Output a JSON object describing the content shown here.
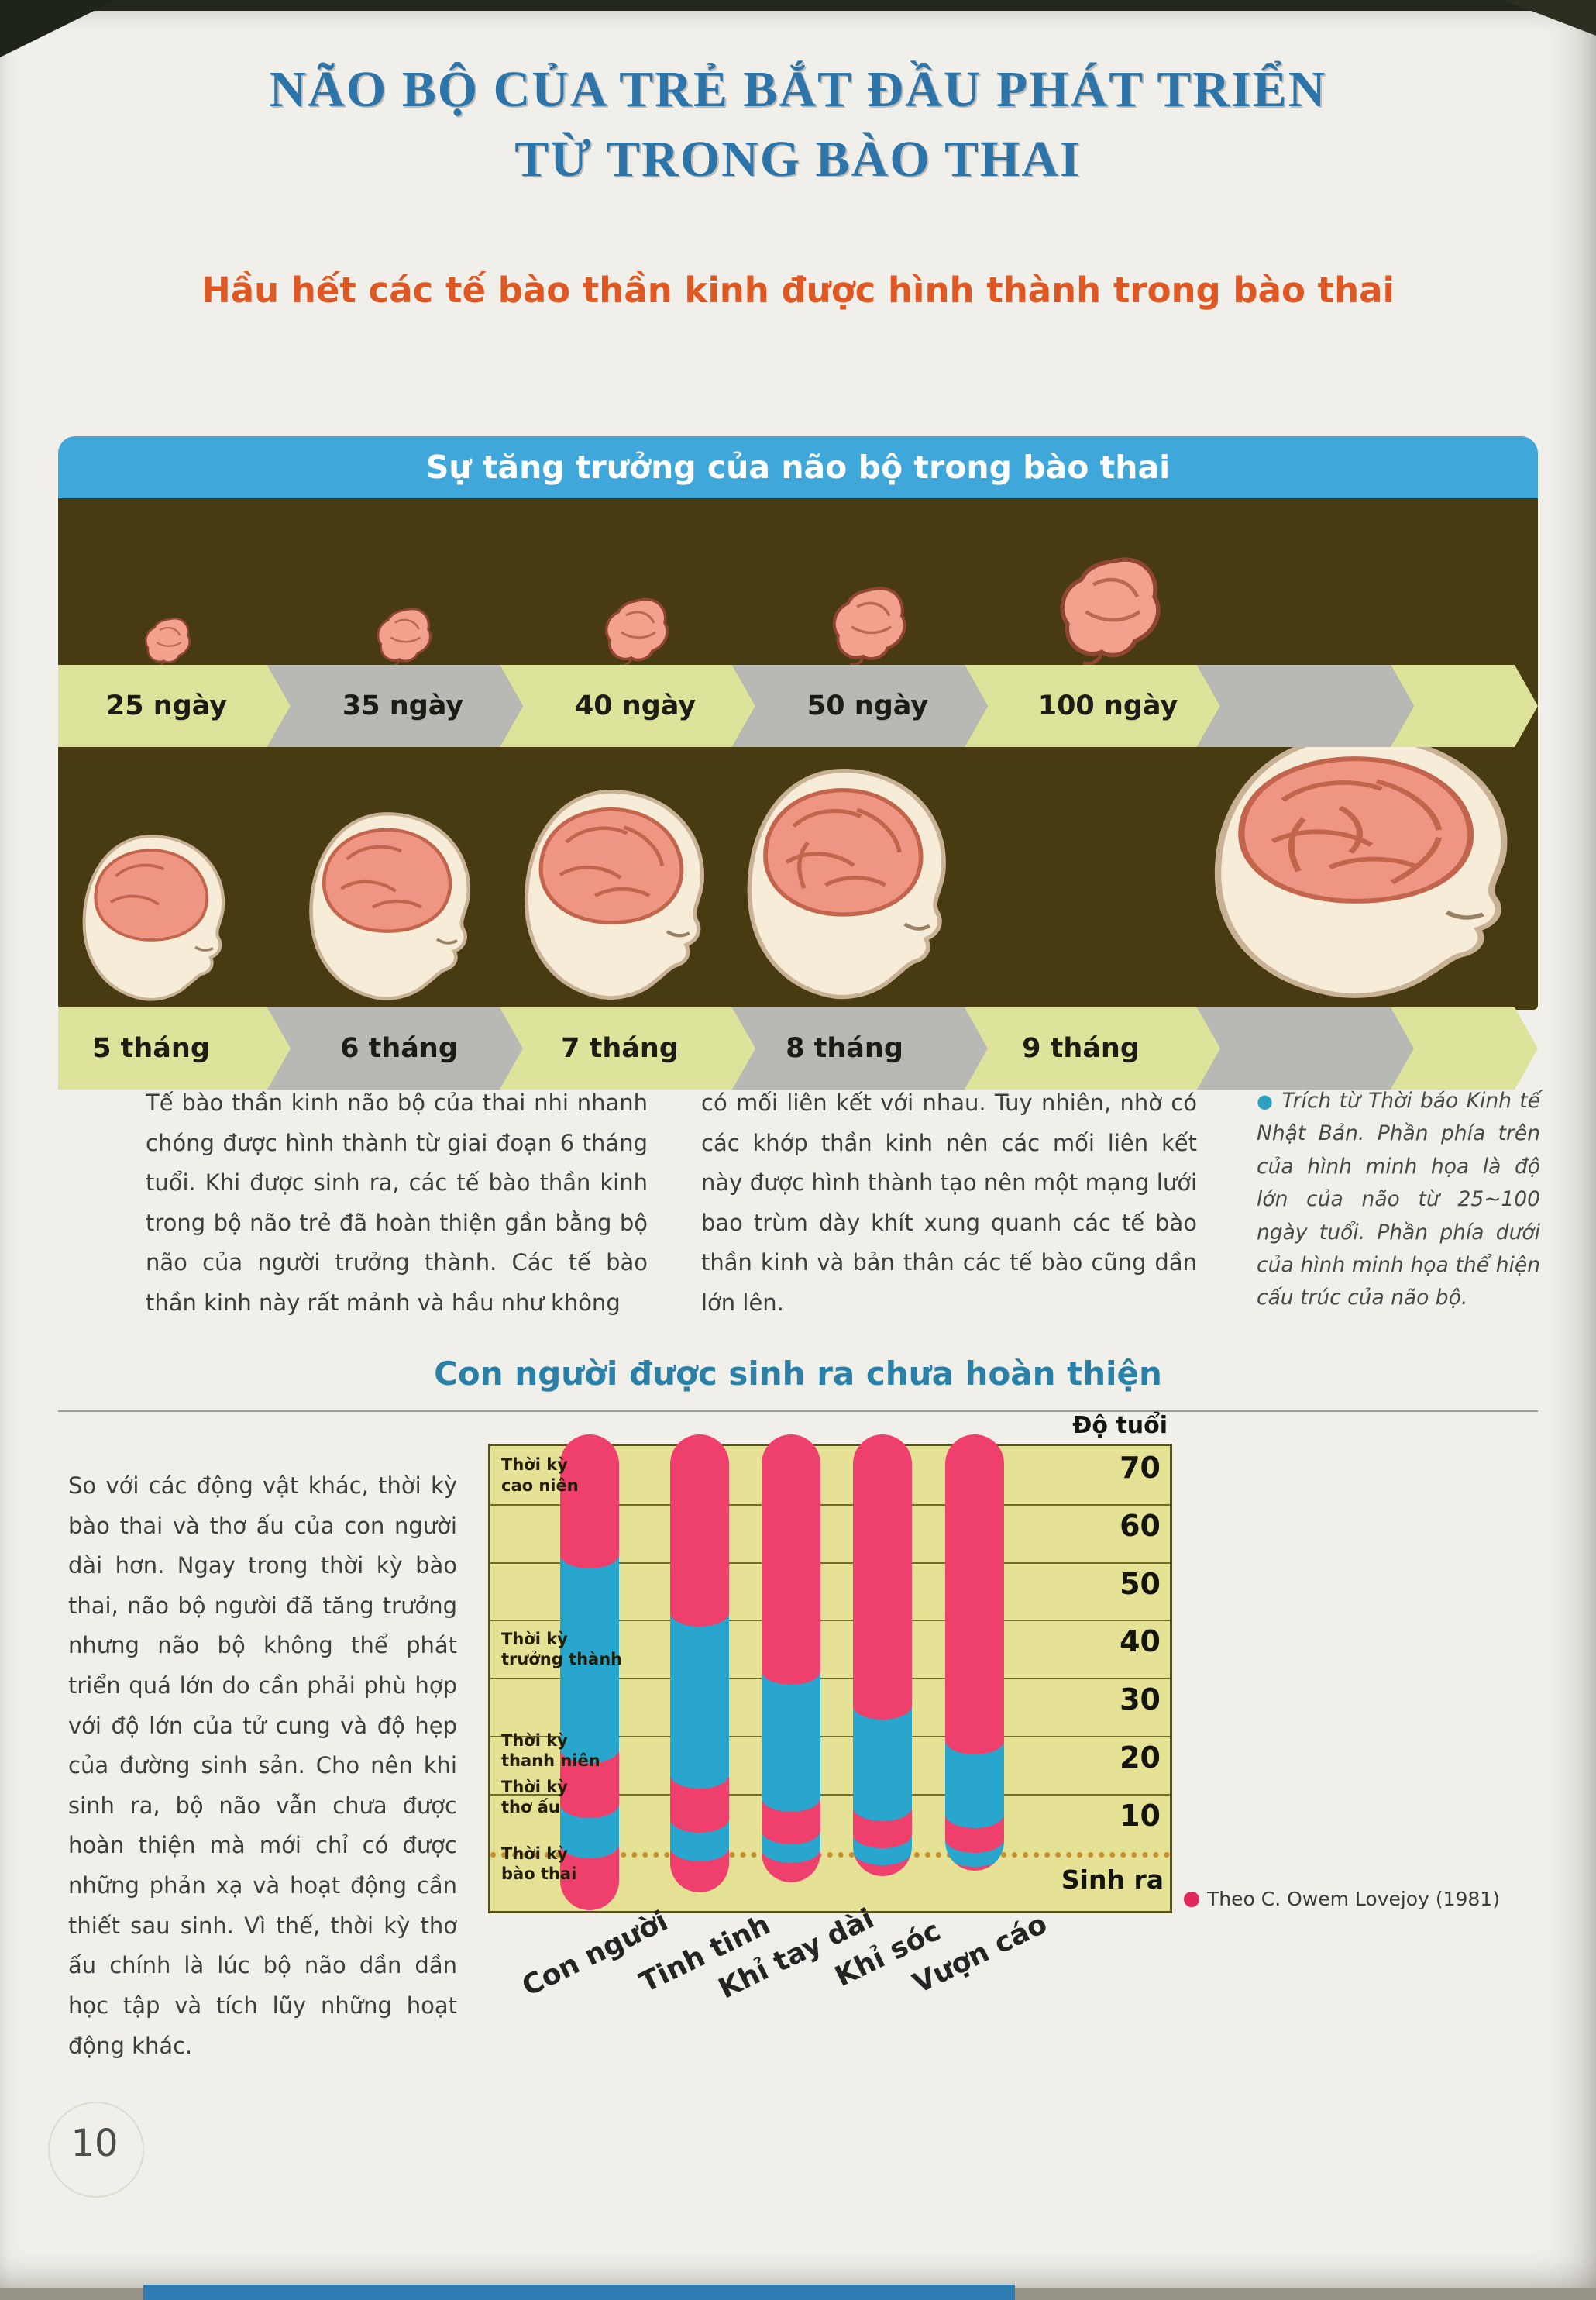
{
  "page": {
    "number": "10"
  },
  "title": {
    "line1": "NÃO BỘ CỦA TRẺ BẮT ĐẦU PHÁT TRIỂN",
    "line2": "TỪ TRONG BÀO THAI"
  },
  "subtitle": "Hầu hết các tế bào thần kinh được hình thành trong bào thai",
  "panel": {
    "header": "Sự tăng trưởng của não bộ trong bào thai",
    "stages_days": [
      "25 ngày",
      "35 ngày",
      "40 ngày",
      "50 ngày",
      "100 ngày"
    ],
    "stages_months": [
      "5 tháng",
      "6 tháng",
      "7 tháng",
      "8 tháng",
      "9 tháng"
    ],
    "colors": {
      "header_blue": "#3fa7d9",
      "body_brown": "#483a11",
      "arrow_yellow": "#dde39b",
      "arrow_gray": "#b8b8b4"
    }
  },
  "article": {
    "col1": "Tế bào thần kinh não bộ của thai nhi nhanh chóng được hình thành từ giai đoạn 6 tháng tuổi. Khi được sinh ra, các tế bào thần kinh trong bộ não trẻ đã hoàn thiện gần bằng bộ não của người trưởng thành. Các tế bào thần kinh này rất mảnh và hầu như không",
    "col2": "có mối liên kết với nhau. Tuy nhiên, nhờ có các khớp thần kinh nên các mối liên kết này được hình thành tạo nên một mạng lưới bao trùm dày khít xung quanh các tế bào thần kinh và bản thân các tế bào cũng dần lớn lên.",
    "note": "Trích từ Thời báo Kinh tế Nhật Bản. Phần phía trên của hình minh họa là độ lớn của não từ 25~100 ngày tuổi. Phần phía dưới của hình minh họa thể hiện cấu trúc của não bộ."
  },
  "section2": {
    "heading": "Con người được sinh ra chưa hoàn thiện",
    "paragraph": "So với các động vật khác, thời kỳ bào thai và thơ ấu của con người dài hơn. Ngay trong thời kỳ bào thai, não bộ người đã tăng trưởng nhưng não bộ không thể phát triển quá lớn do cần phải phù hợp với độ lớn của tử cung và độ hẹp của đường sinh sản. Cho nên khi sinh ra, bộ não vẫn chưa được hoàn thiện mà mới chỉ có được những phản xạ và hoạt động cần thiết sau sinh. Vì thế, thời kỳ thơ ấu chính là lúc bộ não dần dần học tập và tích lũy những hoạt động khác."
  },
  "chart_data": {
    "type": "bar",
    "title": "Con người được sinh ra chưa hoàn thiện",
    "ylabel": "Độ tuổi",
    "birth_label": "Sinh ra",
    "legend": "Theo C. Owem Lovejoy (1981)",
    "legend_position": "bottom-right",
    "grid": true,
    "y_ticks": [
      70,
      60,
      50,
      40,
      30,
      20,
      10
    ],
    "ylim": [
      -10.2,
      72
    ],
    "categories": [
      "Con người",
      "Tinh tinh",
      "Khỉ tay dài",
      "Khỉ sóc",
      "Vượn cáo"
    ],
    "phase_colors": {
      "pink": "#ee3f6d",
      "blue": "#29a6cd"
    },
    "phase_order_top_to_bottom": [
      "pink",
      "blue",
      "pink",
      "blue",
      "pink"
    ],
    "period_labels": [
      {
        "lines": [
          "Thời kỳ",
          "cao niên"
        ],
        "age": 65
      },
      {
        "lines": [
          "Thời kỳ",
          "trưởng thành"
        ],
        "age": 35
      },
      {
        "lines": [
          "Thời kỳ",
          "thanh niên"
        ],
        "age": 17.5
      },
      {
        "lines": [
          "Thời kỳ",
          "thơ ấu"
        ],
        "age": 9.5
      },
      {
        "lines": [
          "Thời kỳ",
          "bào thai"
        ],
        "age": -2
      }
    ],
    "series": [
      {
        "name": "Con người",
        "top": 72,
        "boundaries": [
          51,
          17.5,
          8,
          1
        ],
        "bottom": -10
      },
      {
        "name": "Tinh tinh",
        "top": 72,
        "boundaries": [
          41,
          13,
          5.5,
          0.5
        ],
        "bottom": -7
      },
      {
        "name": "Khỉ tay dài",
        "top": 72,
        "boundaries": [
          31,
          9,
          3.5,
          0.2
        ],
        "bottom": -5.2
      },
      {
        "name": "Khỉ sóc",
        "top": 72,
        "boundaries": [
          25,
          7.5,
          2.7,
          -0.2
        ],
        "bottom": -4.2
      },
      {
        "name": "Vượn cáo",
        "top": 72,
        "boundaries": [
          19,
          6.3,
          2,
          -0.5
        ],
        "bottom": -3.2
      }
    ]
  }
}
